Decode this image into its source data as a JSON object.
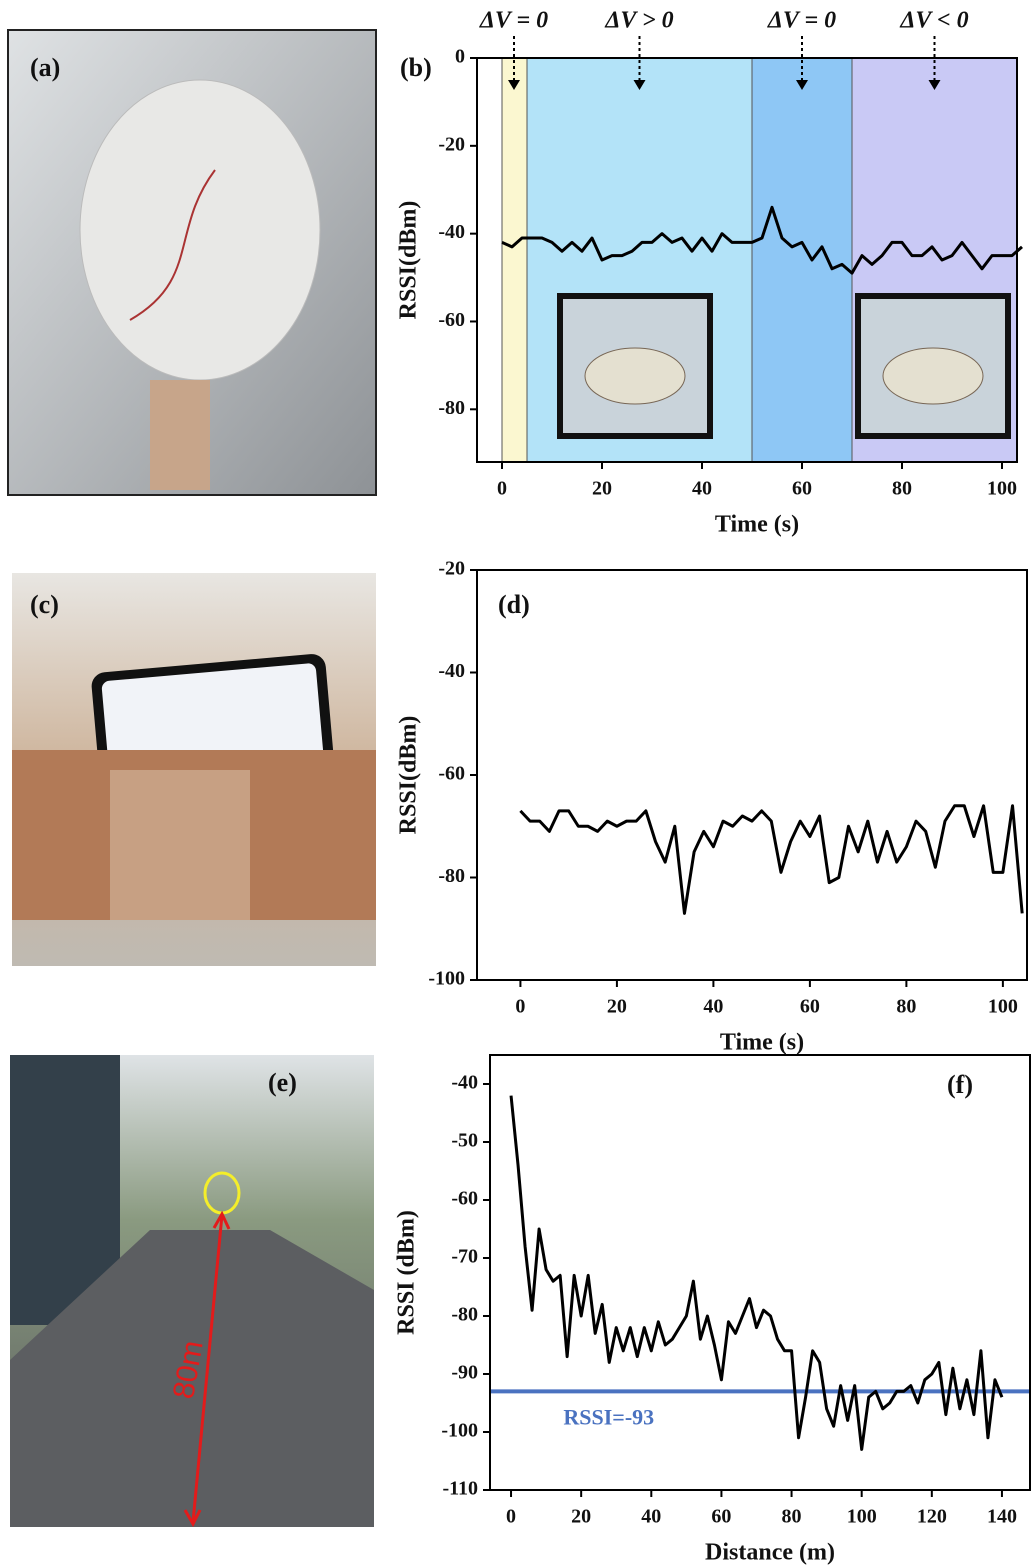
{
  "photos": [
    {
      "label": "(a)"
    },
    {
      "label": "(c)"
    },
    {
      "label": "(e)",
      "annotation": "80m"
    }
  ],
  "chart_data": [
    {
      "type": "line",
      "panel": "(b)",
      "x_label": "Time (s)",
      "y_label": "RSSI(dBm)",
      "color": "#000000",
      "xlim": [
        -5,
        103
      ],
      "ylim": [
        -92,
        0
      ],
      "xticks": [
        0,
        20,
        40,
        60,
        80,
        100
      ],
      "yticks": [
        0,
        -20,
        -40,
        -60,
        -80
      ],
      "regions": [
        {
          "x": [
            0,
            5
          ],
          "color": "#fbf7d0",
          "label": "ΔV = 0"
        },
        {
          "x": [
            5,
            50
          ],
          "color": "#b3e3f8",
          "label": "ΔV > 0"
        },
        {
          "x": [
            50,
            70
          ],
          "color": "#8ec7f5",
          "label": "ΔV = 0"
        },
        {
          "x": [
            70,
            103
          ],
          "color": "#c9c9f5",
          "label": "ΔV < 0"
        }
      ],
      "x": [
        0,
        2,
        4,
        6,
        8,
        10,
        12,
        14,
        16,
        18,
        20,
        22,
        24,
        26,
        28,
        30,
        32,
        34,
        36,
        38,
        40,
        42,
        44,
        46,
        48,
        50,
        52,
        54,
        56,
        58,
        60,
        62,
        64,
        66,
        68,
        70,
        72,
        74,
        76,
        78,
        80,
        82,
        84,
        86,
        88,
        90,
        92,
        94,
        96,
        98,
        100,
        102,
        104
      ],
      "values": [
        -42,
        -43,
        -41,
        -41,
        -41,
        -42,
        -44,
        -42,
        -44,
        -41,
        -46,
        -45,
        -45,
        -44,
        -42,
        -42,
        -40,
        -42,
        -41,
        -44,
        -41,
        -44,
        -40,
        -42,
        -42,
        -42,
        -41,
        -34,
        -41,
        -43,
        -42,
        -46,
        -43,
        -48,
        -47,
        -49,
        -45,
        -47,
        -45,
        -42,
        -42,
        -45,
        -45,
        -43,
        -46,
        -45,
        -42,
        -45,
        -48,
        -45,
        -45,
        -45,
        -43
      ]
    },
    {
      "type": "line",
      "panel": "(d)",
      "x_label": "Time (s)",
      "y_label": "RSSI(dBm)",
      "color": "#000000",
      "xlim": [
        -9,
        105
      ],
      "ylim": [
        -100,
        -20
      ],
      "xticks": [
        0,
        20,
        40,
        60,
        80,
        100
      ],
      "yticks": [
        -20,
        -40,
        -60,
        -80,
        -100
      ],
      "x": [
        0,
        2,
        4,
        6,
        8,
        10,
        12,
        14,
        16,
        18,
        20,
        22,
        24,
        26,
        28,
        30,
        32,
        34,
        36,
        38,
        40,
        42,
        44,
        46,
        48,
        50,
        52,
        54,
        56,
        58,
        60,
        62,
        64,
        66,
        68,
        70,
        72,
        74,
        76,
        78,
        80,
        82,
        84,
        86,
        88,
        90,
        92,
        94,
        96,
        98,
        100,
        102,
        104
      ],
      "values": [
        -67,
        -69,
        -69,
        -71,
        -67,
        -67,
        -70,
        -70,
        -71,
        -69,
        -70,
        -69,
        -69,
        -67,
        -73,
        -77,
        -70,
        -87,
        -75,
        -71,
        -74,
        -69,
        -70,
        -68,
        -69,
        -67,
        -69,
        -79,
        -73,
        -69,
        -72,
        -68,
        -81,
        -80,
        -70,
        -75,
        -69,
        -77,
        -71,
        -77,
        -74,
        -69,
        -71,
        -78,
        -69,
        -66,
        -66,
        -72,
        -66,
        -79,
        -79,
        -66,
        -87
      ]
    },
    {
      "type": "line",
      "panel": "(f)",
      "x_label": "Distance (m)",
      "y_label": "RSSI (dBm)",
      "color": "#000000",
      "xlim": [
        -6,
        148
      ],
      "ylim": [
        -110,
        -35
      ],
      "xticks": [
        0,
        20,
        40,
        60,
        80,
        100,
        120,
        140
      ],
      "yticks": [
        -40,
        -50,
        -60,
        -70,
        -80,
        -90,
        -100,
        -110
      ],
      "hline": {
        "y": -93,
        "label": "RSSI=-93",
        "color": "#4a72c0"
      },
      "x": [
        0,
        2,
        4,
        6,
        8,
        10,
        12,
        14,
        16,
        18,
        20,
        22,
        24,
        26,
        28,
        30,
        32,
        34,
        36,
        38,
        40,
        42,
        44,
        46,
        48,
        50,
        52,
        54,
        56,
        58,
        60,
        62,
        64,
        66,
        68,
        70,
        72,
        74,
        76,
        78,
        80,
        82,
        84,
        86,
        88,
        90,
        92,
        94,
        96,
        98,
        100,
        102,
        104,
        106,
        108,
        110,
        112,
        114,
        116,
        118,
        120,
        122,
        124,
        126,
        128,
        130,
        132,
        134,
        136,
        138,
        140
      ],
      "values": [
        -42,
        -54,
        -68,
        -79,
        -65,
        -72,
        -74,
        -73,
        -87,
        -73,
        -80,
        -73,
        -83,
        -78,
        -88,
        -82,
        -86,
        -82,
        -87,
        -82,
        -86,
        -81,
        -85,
        -84,
        -82,
        -80,
        -74,
        -84,
        -80,
        -85,
        -91,
        -81,
        -83,
        -80,
        -77,
        -82,
        -79,
        -80,
        -84,
        -86,
        -86,
        -101,
        -94,
        -86,
        -88,
        -96,
        -99,
        -92,
        -98,
        -92,
        -103,
        -94,
        -93,
        -96,
        -95,
        -93,
        -93,
        -92,
        -95,
        -91,
        -90,
        -88,
        -97,
        -89,
        -96,
        -91,
        -97,
        -86,
        -101,
        -91,
        -94
      ]
    }
  ]
}
